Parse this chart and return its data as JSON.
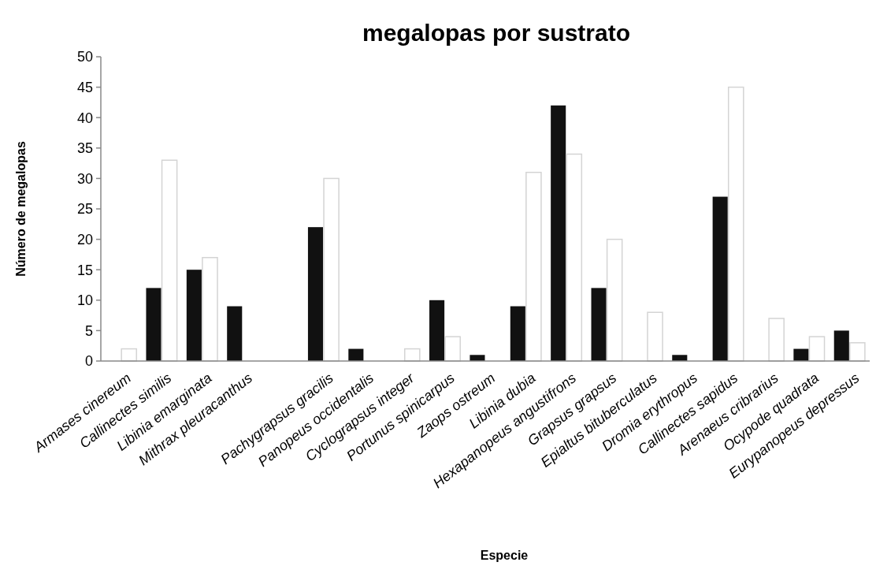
{
  "chart_data": {
    "type": "bar",
    "title": "megalopas por sustrato",
    "xlabel": "Especie",
    "ylabel": "Número de megalopas",
    "categories": [
      "Armases cinereum",
      "Callinectes similis",
      "Libinia emarginata",
      "Mithrax pleuracanthus",
      null,
      "Pachygrapsus gracilis",
      "Panopeus occidentalis",
      "Cyclograpsus integer",
      "Portunus spinicarpus",
      "Zaops ostreum",
      "Libinia dubia",
      "Hexapanopeus angustifrons",
      "Grapsus grapsus",
      "Epialtus bituberculatus",
      "Dromia erythropus",
      "Callinectes sapidus",
      "Arenaeus cribrarius",
      "Ocypode quadrata",
      "Eurypanopeus depressus"
    ],
    "series": [
      {
        "color": "#111111",
        "values": [
          0,
          12,
          15,
          9,
          0,
          22,
          2,
          0,
          10,
          1,
          9,
          42,
          12,
          0,
          1,
          27,
          0,
          2,
          5
        ]
      },
      {
        "color": "#ffffff",
        "values": [
          2,
          33,
          17,
          0,
          0,
          30,
          0,
          2,
          4,
          0,
          31,
          34,
          20,
          8,
          0,
          45,
          7,
          4,
          3
        ]
      }
    ],
    "ylim": [
      0,
      50
    ],
    "yticks": [
      0,
      5,
      10,
      15,
      20,
      25,
      30,
      35,
      40,
      45,
      50
    ],
    "grid": false
  }
}
